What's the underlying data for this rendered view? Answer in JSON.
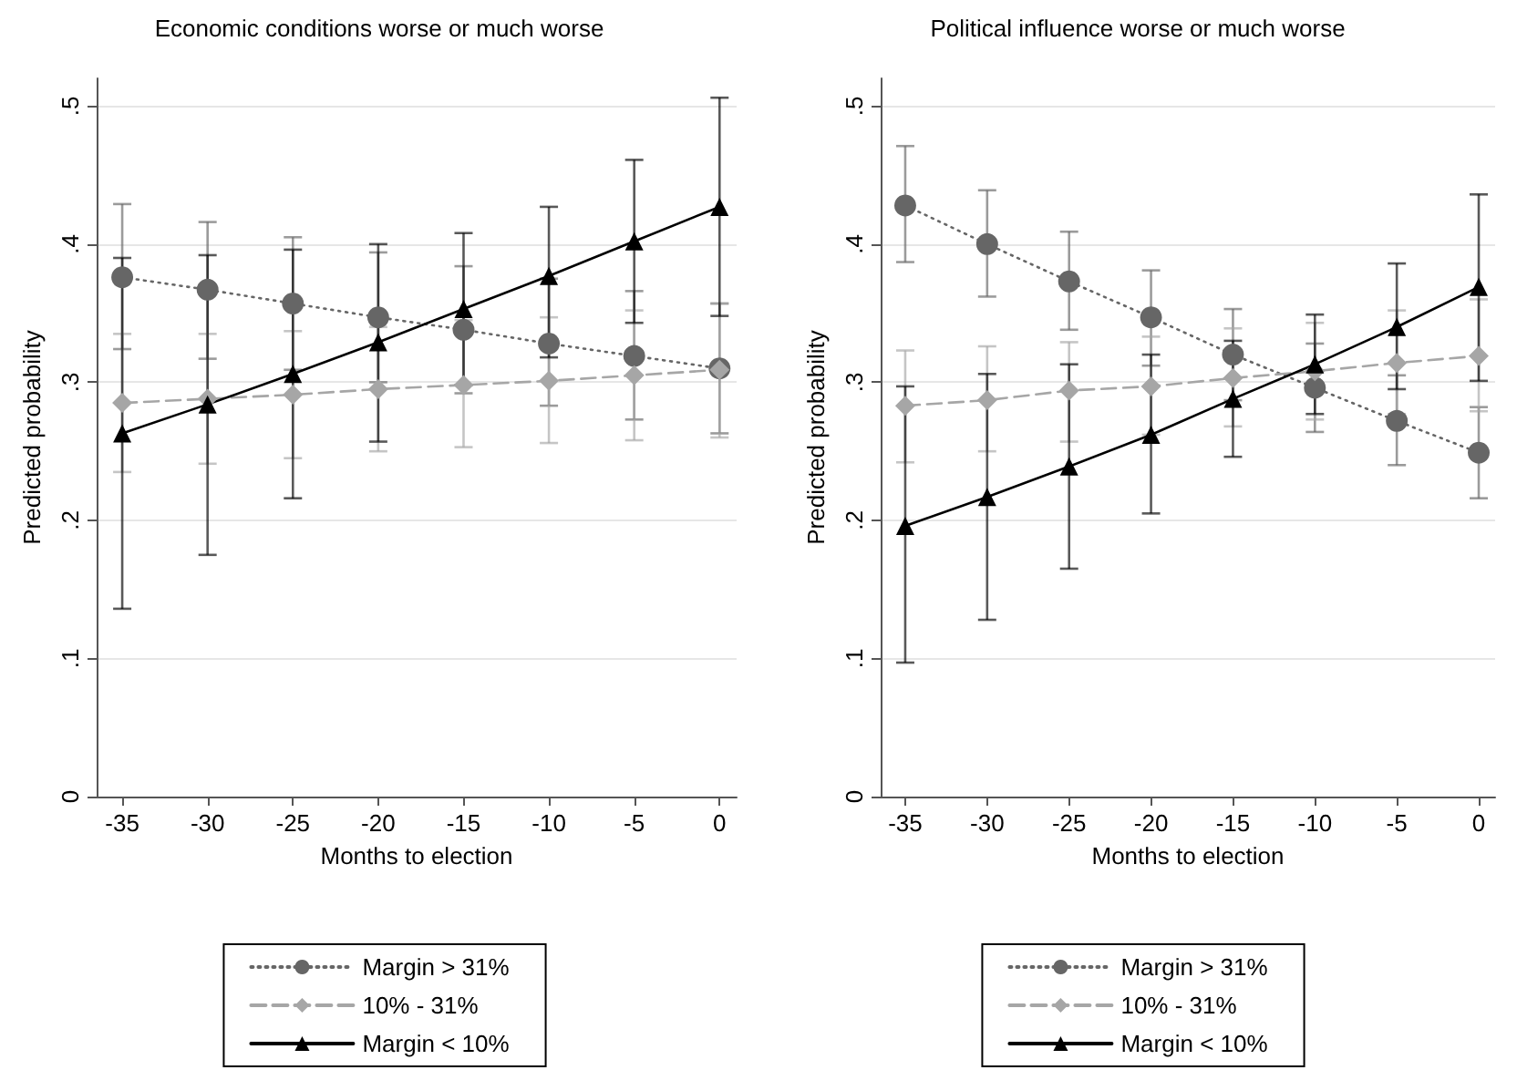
{
  "chart_data": [
    {
      "type": "line",
      "title": "Economic conditions worse or much worse",
      "xlabel": "Months to election",
      "ylabel": "Predicted probability",
      "x": [
        -35,
        -30,
        -25,
        -20,
        -15,
        -10,
        -5,
        0
      ],
      "xlim": [
        -36.5,
        1
      ],
      "xticks": [
        -35,
        -30,
        -25,
        -20,
        -15,
        -10,
        -5,
        0
      ],
      "ylim": [
        0,
        0.52
      ],
      "yticks": [
        {
          "value": 0,
          "label": "0"
        },
        {
          "value": 0.1,
          "label": ".1"
        },
        {
          "value": 0.2,
          "label": ".2"
        },
        {
          "value": 0.3,
          "label": ".3"
        },
        {
          "value": 0.4,
          "label": ".4"
        },
        {
          "value": 0.5,
          "label": ".5"
        }
      ],
      "grid": "y",
      "legend": "bottom",
      "series": [
        {
          "name": "Margin > 31%",
          "color": "#666666",
          "marker": "circle",
          "line_style": "dotted",
          "values": [
            0.376,
            0.367,
            0.357,
            0.347,
            0.338,
            0.328,
            0.319,
            0.31
          ],
          "errors": [
            [
              0.324,
              0.429
            ],
            [
              0.317,
              0.416
            ],
            [
              0.309,
              0.405
            ],
            [
              0.3,
              0.394
            ],
            [
              0.292,
              0.384
            ],
            [
              0.283,
              0.375
            ],
            [
              0.273,
              0.366
            ],
            [
              0.263,
              0.357
            ]
          ]
        },
        {
          "name": "10% - 31%",
          "color": "#a6a6a6",
          "marker": "diamond",
          "line_style": "dashed",
          "values": [
            0.285,
            0.288,
            0.291,
            0.295,
            0.298,
            0.301,
            0.305,
            0.309
          ],
          "errors": [
            [
              0.235,
              0.335
            ],
            [
              0.241,
              0.335
            ],
            [
              0.245,
              0.337
            ],
            [
              0.25,
              0.34
            ],
            [
              0.253,
              0.345
            ],
            [
              0.256,
              0.347
            ],
            [
              0.258,
              0.352
            ],
            [
              0.26,
              0.357
            ]
          ]
        },
        {
          "name": "Margin < 10%",
          "color": "#000000",
          "marker": "triangle",
          "line_style": "solid",
          "values": [
            0.263,
            0.284,
            0.306,
            0.329,
            0.353,
            0.377,
            0.402,
            0.427
          ],
          "errors": [
            [
              0.136,
              0.39
            ],
            [
              0.175,
              0.392
            ],
            [
              0.216,
              0.396
            ],
            [
              0.257,
              0.4
            ],
            [
              0.298,
              0.408
            ],
            [
              0.318,
              0.427
            ],
            [
              0.343,
              0.461
            ],
            [
              0.348,
              0.506
            ]
          ]
        }
      ]
    },
    {
      "type": "line",
      "title": "Political influence worse or much worse",
      "xlabel": "Months to election",
      "ylabel": "Predicted probability",
      "x": [
        -35,
        -30,
        -25,
        -20,
        -15,
        -10,
        -5,
        0
      ],
      "xlim": [
        -36.5,
        1
      ],
      "xticks": [
        -35,
        -30,
        -25,
        -20,
        -15,
        -10,
        -5,
        0
      ],
      "ylim": [
        0,
        0.52
      ],
      "yticks": [
        {
          "value": 0,
          "label": "0"
        },
        {
          "value": 0.1,
          "label": ".1"
        },
        {
          "value": 0.2,
          "label": ".2"
        },
        {
          "value": 0.3,
          "label": ".3"
        },
        {
          "value": 0.4,
          "label": ".4"
        },
        {
          "value": 0.5,
          "label": ".5"
        }
      ],
      "grid": "y",
      "legend": "bottom",
      "series": [
        {
          "name": "Margin > 31%",
          "color": "#666666",
          "marker": "circle",
          "line_style": "dotted",
          "values": [
            0.428,
            0.4,
            0.373,
            0.347,
            0.32,
            0.296,
            0.272,
            0.249
          ],
          "errors": [
            [
              0.387,
              0.471
            ],
            [
              0.362,
              0.439
            ],
            [
              0.338,
              0.409
            ],
            [
              0.312,
              0.381
            ],
            [
              0.287,
              0.353
            ],
            [
              0.264,
              0.328
            ],
            [
              0.24,
              0.305
            ],
            [
              0.216,
              0.282
            ]
          ]
        },
        {
          "name": "10% - 31%",
          "color": "#a6a6a6",
          "marker": "diamond",
          "line_style": "dashed",
          "values": [
            0.283,
            0.287,
            0.294,
            0.297,
            0.303,
            0.308,
            0.314,
            0.319
          ],
          "errors": [
            [
              0.242,
              0.323
            ],
            [
              0.25,
              0.326
            ],
            [
              0.257,
              0.329
            ],
            [
              0.262,
              0.333
            ],
            [
              0.268,
              0.339
            ],
            [
              0.273,
              0.343
            ],
            [
              0.277,
              0.352
            ],
            [
              0.279,
              0.36
            ]
          ]
        },
        {
          "name": "Margin < 10%",
          "color": "#000000",
          "marker": "triangle",
          "line_style": "solid",
          "values": [
            0.196,
            0.217,
            0.239,
            0.262,
            0.288,
            0.313,
            0.34,
            0.369
          ],
          "errors": [
            [
              0.097,
              0.297
            ],
            [
              0.128,
              0.306
            ],
            [
              0.165,
              0.313
            ],
            [
              0.205,
              0.32
            ],
            [
              0.246,
              0.33
            ],
            [
              0.277,
              0.349
            ],
            [
              0.295,
              0.386
            ],
            [
              0.301,
              0.436
            ]
          ]
        }
      ]
    }
  ]
}
